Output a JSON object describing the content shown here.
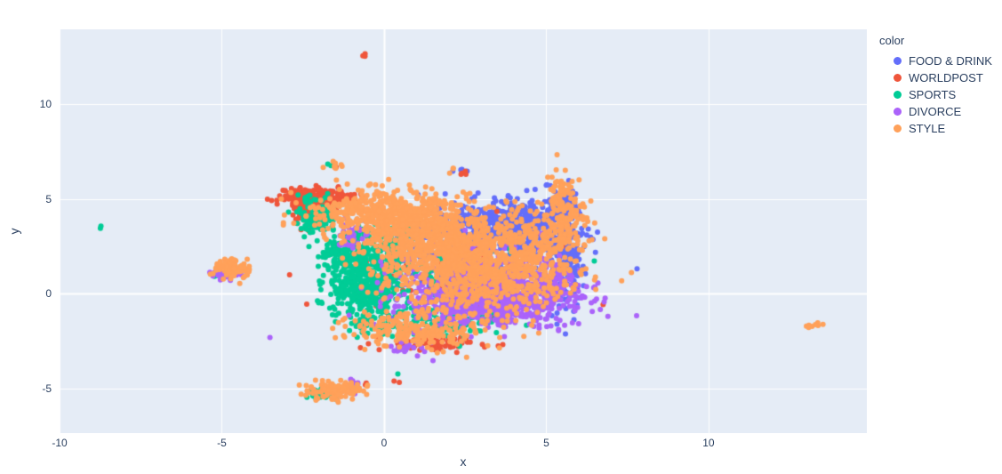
{
  "chart_data": {
    "type": "scatter",
    "title": "",
    "xlabel": "x",
    "ylabel": "y",
    "xlim": [
      -10,
      14.88
    ],
    "ylim": [
      -7.34,
      13.94
    ],
    "xticks": [
      -10,
      -5,
      0,
      5,
      10
    ],
    "yticks": [
      -5,
      0,
      5,
      10
    ],
    "grid": true,
    "legend_title": "color",
    "legend_position": "top-right-outside",
    "marker_size": 6,
    "colors": {
      "paper_bg": "#FFFFFF",
      "plot_bg": "#E5ECF6",
      "grid": "#FFFFFF",
      "zeroline": "#FFFFFF",
      "text": "#2A3F5F"
    },
    "series": [
      {
        "name": "FOOD & DRINK",
        "color": "#636EFA",
        "clusters": [
          {
            "cx": 3.9,
            "cy": 3.6,
            "sx": 1.0,
            "sy": 0.6,
            "n": 550
          },
          {
            "cx": 5.6,
            "cy": 1.8,
            "sx": 0.3,
            "sy": 1.4,
            "n": 220
          },
          {
            "cx": 2.6,
            "cy": 1.4,
            "sx": 1.5,
            "sy": 1.1,
            "n": 150
          },
          {
            "cx": 5.5,
            "cy": 4.7,
            "sx": 0.25,
            "sy": 0.55,
            "n": 80
          },
          {
            "cx": 2.2,
            "cy": 2.7,
            "sx": 1.2,
            "sy": 0.7,
            "n": 120
          },
          {
            "cx": 2.35,
            "cy": 6.45,
            "sx": 0.12,
            "sy": 0.1,
            "n": 8
          },
          {
            "cx": -4.65,
            "cy": 1.55,
            "sx": 0.12,
            "sy": 0.1,
            "n": 5
          }
        ]
      },
      {
        "name": "WORLDPOST",
        "color": "#EF553B",
        "clusters": [
          {
            "cx": -2.05,
            "cy": 5.0,
            "sx": 0.5,
            "sy": 0.3,
            "n": 260
          },
          {
            "cx": -2.45,
            "cy": 4.35,
            "sx": 0.22,
            "sy": 0.45,
            "n": 60
          },
          {
            "cx": 1.6,
            "cy": -2.6,
            "sx": 0.8,
            "sy": 0.18,
            "n": 70
          },
          {
            "cx": 2.2,
            "cy": 0.8,
            "sx": 1.5,
            "sy": 1.1,
            "n": 90
          },
          {
            "cx": -0.55,
            "cy": 12.6,
            "sx": 0.07,
            "sy": 0.06,
            "n": 3
          },
          {
            "cx": 0.33,
            "cy": -4.6,
            "sx": 0.06,
            "sy": 0.05,
            "n": 2
          },
          {
            "cx": -0.55,
            "cy": -4.75,
            "sx": 0.08,
            "sy": 0.06,
            "n": 2
          },
          {
            "cx": 2.5,
            "cy": 6.4,
            "sx": 0.1,
            "sy": 0.08,
            "n": 4
          },
          {
            "cx": -4.85,
            "cy": 1.1,
            "sx": 0.15,
            "sy": 0.12,
            "n": 8
          },
          {
            "cx": -1.5,
            "cy": 6.75,
            "sx": 0.1,
            "sy": 0.07,
            "n": 2
          },
          {
            "cx": -1.3,
            "cy": -4.85,
            "sx": 0.12,
            "sy": 0.1,
            "n": 3
          }
        ]
      },
      {
        "name": "SPORTS",
        "color": "#00CC96",
        "clusters": [
          {
            "cx": -0.6,
            "cy": 0.7,
            "sx": 0.6,
            "sy": 1.0,
            "n": 500
          },
          {
            "cx": -1.2,
            "cy": 2.2,
            "sx": 0.4,
            "sy": 0.5,
            "n": 120
          },
          {
            "cx": -2.1,
            "cy": 4.1,
            "sx": 0.3,
            "sy": 0.5,
            "n": 130
          },
          {
            "cx": 1.5,
            "cy": -1.5,
            "sx": 1.0,
            "sy": 0.45,
            "n": 160
          },
          {
            "cx": 2.2,
            "cy": 1.0,
            "sx": 1.4,
            "sy": 1.0,
            "n": 80
          },
          {
            "cx": 0.3,
            "cy": 2.9,
            "sx": 0.45,
            "sy": 0.5,
            "n": 70
          },
          {
            "cx": -8.7,
            "cy": 3.55,
            "sx": 0.06,
            "sy": 0.05,
            "n": 2
          },
          {
            "cx": -4.9,
            "cy": 1.2,
            "sx": 0.2,
            "sy": 0.15,
            "n": 15
          },
          {
            "cx": -1.95,
            "cy": -5.3,
            "sx": 0.22,
            "sy": 0.15,
            "n": 25
          },
          {
            "cx": -1.65,
            "cy": 6.8,
            "sx": 0.1,
            "sy": 0.08,
            "n": 3
          },
          {
            "cx": 0.45,
            "cy": -4.35,
            "sx": 0.05,
            "sy": 0.05,
            "n": 1
          }
        ]
      },
      {
        "name": "DIVORCE",
        "color": "#AB63FA",
        "clusters": [
          {
            "cx": 3.2,
            "cy": -0.4,
            "sx": 1.25,
            "sy": 0.65,
            "n": 700
          },
          {
            "cx": 2.9,
            "cy": 1.2,
            "sx": 1.2,
            "sy": 0.8,
            "n": 280
          },
          {
            "cx": 4.8,
            "cy": 0.3,
            "sx": 0.7,
            "sy": 0.6,
            "n": 150
          },
          {
            "cx": -4.85,
            "cy": 1.05,
            "sx": 0.22,
            "sy": 0.18,
            "n": 35
          },
          {
            "cx": -3.6,
            "cy": -2.37,
            "sx": 0.05,
            "sy": 0.04,
            "n": 1
          },
          {
            "cx": -0.95,
            "cy": -5.0,
            "sx": 0.15,
            "sy": 0.18,
            "n": 15
          },
          {
            "cx": -1.1,
            "cy": 3.0,
            "sx": 0.3,
            "sy": 0.4,
            "n": 35
          },
          {
            "cx": 0.8,
            "cy": -3.0,
            "sx": 0.4,
            "sy": 0.25,
            "n": 20
          }
        ]
      },
      {
        "name": "STYLE",
        "color": "#FFA15A",
        "clusters": [
          {
            "cx": 0.2,
            "cy": 4.2,
            "sx": 1.1,
            "sy": 0.55,
            "n": 550
          },
          {
            "cx": 1.8,
            "cy": 2.8,
            "sx": 1.3,
            "sy": 0.9,
            "n": 650
          },
          {
            "cx": 2.9,
            "cy": 0.9,
            "sx": 1.4,
            "sy": 1.0,
            "n": 650
          },
          {
            "cx": 1.0,
            "cy": -1.9,
            "sx": 1.1,
            "sy": 0.5,
            "n": 220
          },
          {
            "cx": 4.6,
            "cy": 2.6,
            "sx": 0.8,
            "sy": 0.9,
            "n": 200
          },
          {
            "cx": 5.45,
            "cy": 5.2,
            "sx": 0.22,
            "sy": 0.6,
            "n": 70
          },
          {
            "cx": 5.6,
            "cy": 3.6,
            "sx": 0.3,
            "sy": 0.7,
            "n": 80
          },
          {
            "cx": -4.7,
            "cy": 1.4,
            "sx": 0.3,
            "sy": 0.28,
            "n": 90
          },
          {
            "cx": -1.55,
            "cy": -5.1,
            "sx": 0.4,
            "sy": 0.25,
            "n": 130
          },
          {
            "cx": -1.6,
            "cy": 6.8,
            "sx": 0.16,
            "sy": 0.12,
            "n": 10
          },
          {
            "cx": 13.35,
            "cy": -1.6,
            "sx": 0.18,
            "sy": 0.12,
            "n": 8
          },
          {
            "cx": 2.2,
            "cy": 6.5,
            "sx": 0.1,
            "sy": 0.08,
            "n": 3
          },
          {
            "cx": -0.35,
            "cy": 5.8,
            "sx": 0.2,
            "sy": 0.15,
            "n": 5
          }
        ]
      }
    ]
  }
}
